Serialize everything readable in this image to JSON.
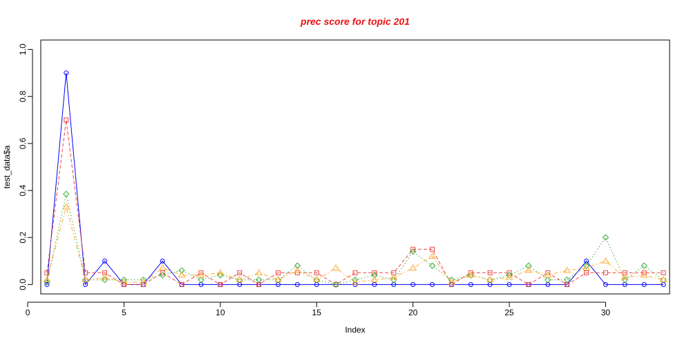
{
  "chart_data": {
    "type": "line",
    "title": "prec score for topic 201",
    "title_color": "#ee1111",
    "xlabel": "Index",
    "ylabel": "test_data$a",
    "xlim": [
      0.68,
      33.32
    ],
    "ylim": [
      -0.04,
      1.04
    ],
    "x_ticks": [
      0,
      5,
      10,
      15,
      20,
      25,
      30
    ],
    "y_ticks": [
      0.0,
      0.2,
      0.4,
      0.6,
      0.8,
      1.0
    ],
    "x": [
      1,
      2,
      3,
      4,
      5,
      6,
      7,
      8,
      9,
      10,
      11,
      12,
      13,
      14,
      15,
      16,
      17,
      18,
      19,
      20,
      21,
      22,
      23,
      24,
      25,
      26,
      27,
      28,
      29,
      30,
      31,
      32,
      33
    ],
    "grid": false,
    "series": [
      {
        "color": "#0000ff",
        "marker": "circle",
        "line": "solid",
        "values": [
          0,
          0.9,
          0,
          0.1,
          0,
          0,
          0.1,
          0,
          0,
          0,
          0,
          0,
          0,
          0,
          0,
          0,
          0,
          0,
          0,
          0,
          0,
          0,
          0,
          0,
          0,
          0,
          0,
          0,
          0.1,
          0,
          0,
          0,
          0
        ]
      },
      {
        "color": "#ee4444",
        "marker": "square",
        "line": "dashed",
        "values": [
          0.05,
          0.7,
          0.05,
          0.05,
          0,
          0,
          0.05,
          0,
          0.05,
          0,
          0.05,
          0,
          0.05,
          0.05,
          0.05,
          0,
          0.05,
          0.05,
          0.05,
          0.15,
          0.15,
          0,
          0.05,
          0.05,
          0.05,
          0,
          0.05,
          0,
          0.05,
          0.05,
          0.05,
          0.05,
          0.05
        ]
      },
      {
        "color": "#33aa33",
        "marker": "diamond",
        "line": "dotted",
        "values": [
          0.01,
          0.385,
          0.02,
          0.02,
          0.02,
          0.02,
          0.04,
          0.06,
          0.02,
          0.04,
          0.02,
          0.02,
          0.02,
          0.08,
          0.02,
          0,
          0.02,
          0.04,
          0.02,
          0.14,
          0.08,
          0.02,
          0.04,
          0.02,
          0.04,
          0.08,
          0.02,
          0.02,
          0.08,
          0.2,
          0.02,
          0.08,
          0.02
        ]
      },
      {
        "color": "#ffaa33",
        "marker": "triangle",
        "line": "dashdot",
        "values": [
          0.02,
          0.33,
          0.02,
          0.03,
          0.01,
          0.01,
          0.07,
          0.04,
          0.04,
          0.05,
          0.02,
          0.05,
          0.02,
          0.06,
          0.02,
          0.07,
          0.01,
          0.02,
          0.03,
          0.07,
          0.12,
          0.01,
          0.04,
          0.02,
          0.03,
          0.06,
          0.04,
          0.06,
          0.07,
          0.1,
          0.03,
          0.04,
          0.02
        ]
      }
    ]
  }
}
